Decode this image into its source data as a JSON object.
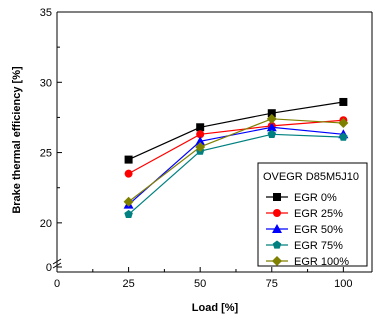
{
  "chart_data": {
    "type": "line",
    "xlabel": "Load [%]",
    "ylabel": "Brake thermal efficiency [%]",
    "x_ticks": [
      "0",
      "25",
      "50",
      "75",
      "100"
    ],
    "y_ticks": [
      "0",
      "20",
      "25",
      "30",
      "35"
    ],
    "xlim": [
      0,
      110
    ],
    "ylim_upper": [
      17.5,
      35
    ],
    "axis_break": true,
    "legend": {
      "title": "OVEGR D85M5J10",
      "placement": "bottom-right"
    },
    "x": [
      25,
      50,
      75,
      100
    ],
    "series": [
      {
        "name": "EGR 0%",
        "color": "#000000",
        "marker": "square",
        "values": [
          24.5,
          26.8,
          27.8,
          28.6
        ]
      },
      {
        "name": "EGR 25%",
        "color": "#ff0000",
        "marker": "circle",
        "values": [
          23.5,
          26.3,
          26.9,
          27.3
        ]
      },
      {
        "name": "EGR 50%",
        "color": "#0000ff",
        "marker": "triangle",
        "values": [
          21.3,
          25.8,
          26.8,
          26.3
        ]
      },
      {
        "name": "EGR 75%",
        "color": "#008080",
        "marker": "pentagon",
        "values": [
          20.6,
          25.1,
          26.3,
          26.1
        ]
      },
      {
        "name": "EGR 100%",
        "color": "#808000",
        "marker": "diamond",
        "values": [
          21.5,
          25.4,
          27.4,
          27.1
        ]
      }
    ]
  }
}
